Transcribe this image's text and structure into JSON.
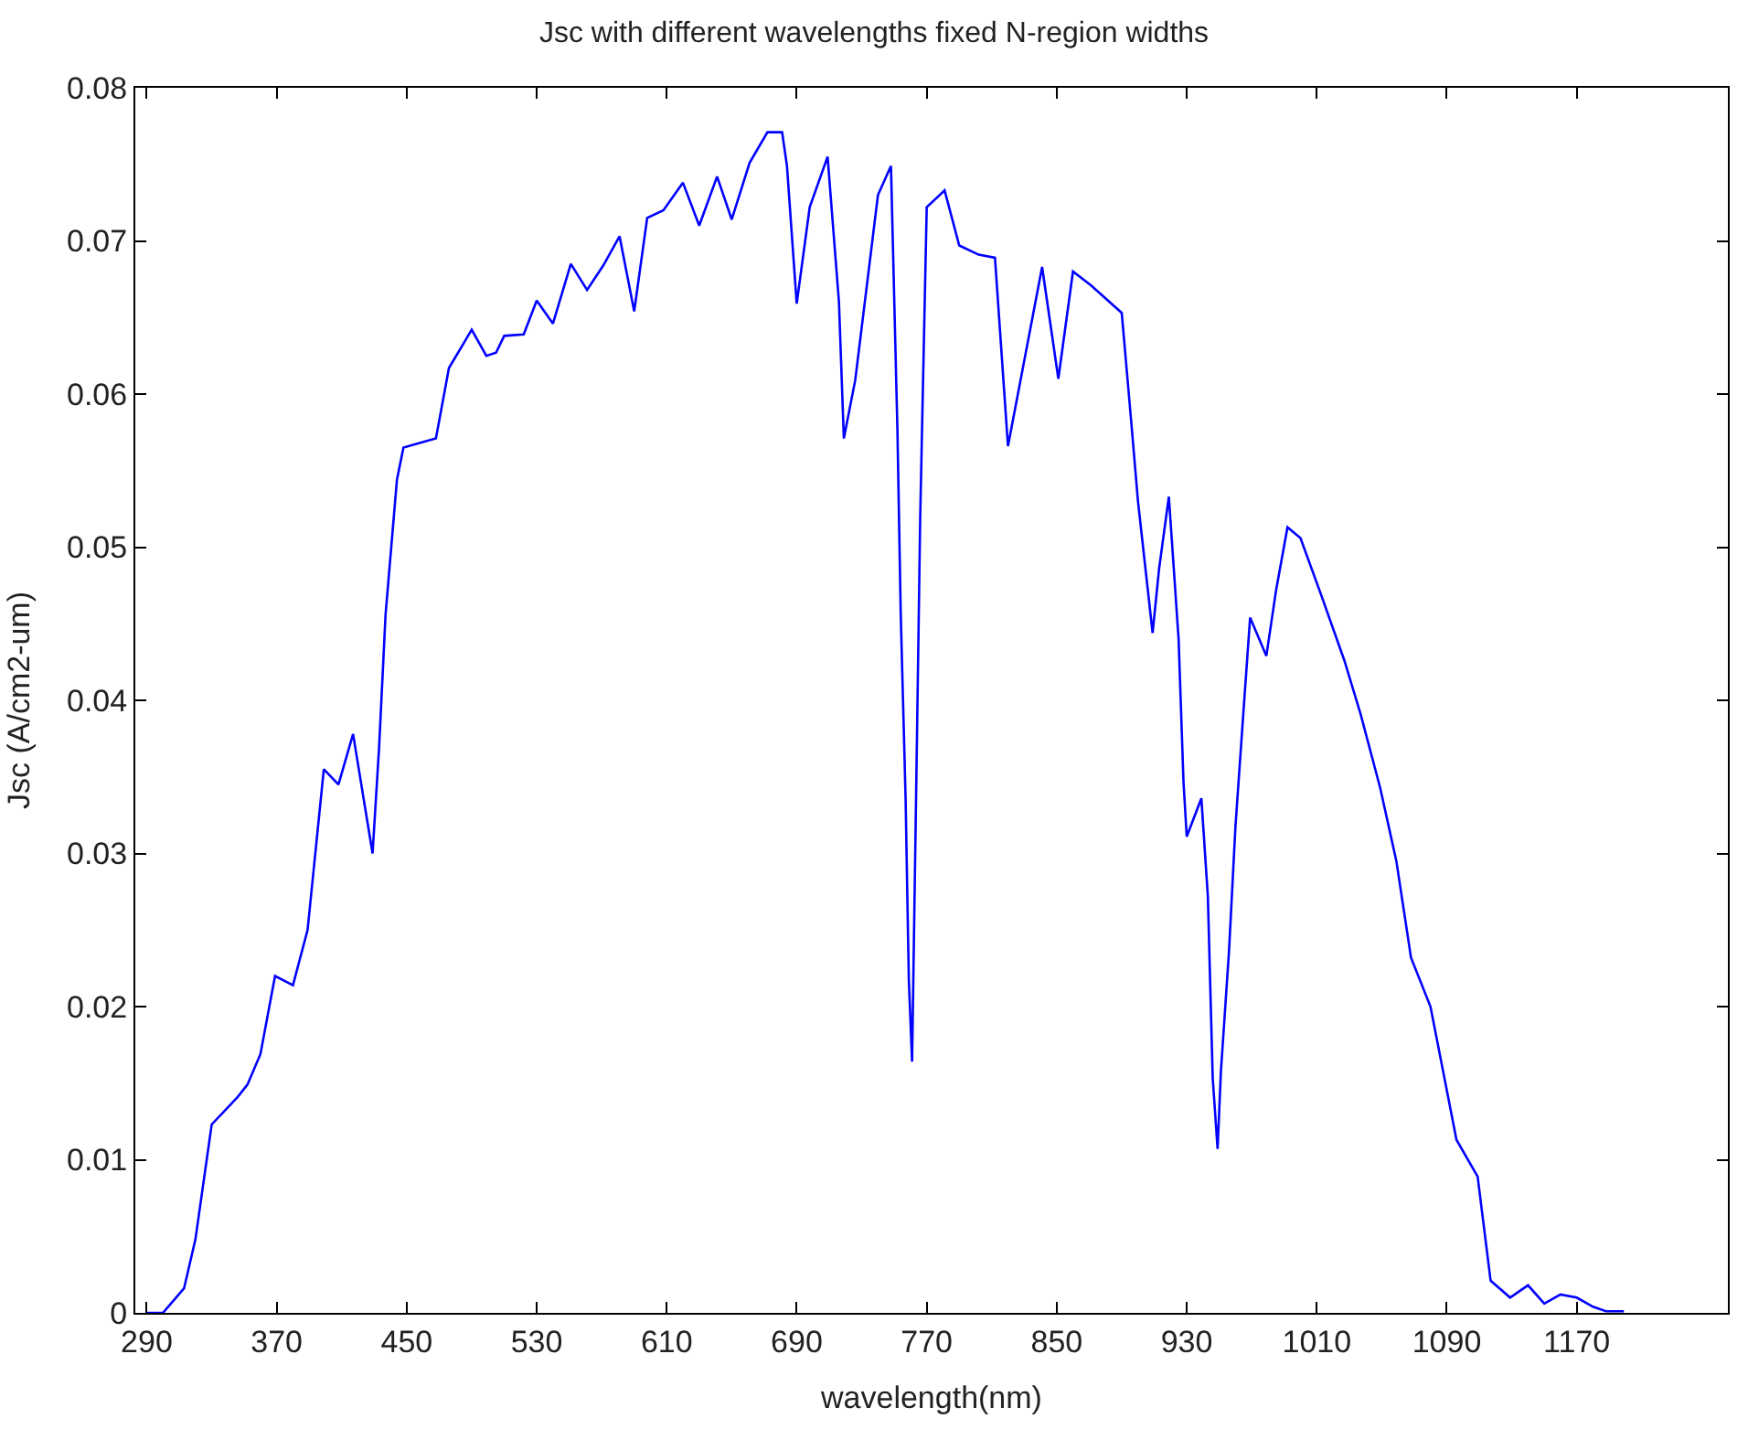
{
  "chart_data": {
    "type": "line",
    "title": "Jsc with different wavelengths fixed N-region widths",
    "xlabel": "wavelength(nm)",
    "ylabel": "Jsc (A/cm2-um)",
    "x": [
      290,
      300,
      313,
      320,
      330,
      346,
      352,
      360,
      369,
      380,
      389,
      399,
      408,
      417,
      429,
      433,
      437,
      444,
      448,
      468,
      476,
      490,
      499,
      505,
      510,
      522,
      530,
      540,
      551,
      561,
      571,
      581,
      590,
      598,
      608,
      620,
      630,
      641,
      650,
      661,
      672,
      681,
      684,
      690,
      698,
      709,
      716,
      719,
      726,
      740,
      748,
      752,
      754,
      757,
      759,
      761,
      764,
      766,
      770,
      781,
      790,
      802,
      812,
      820,
      841,
      851,
      860,
      871,
      890,
      896,
      900,
      909,
      913,
      919,
      925,
      928,
      930,
      939,
      943,
      946,
      949,
      951,
      956,
      960,
      965,
      969,
      979,
      985,
      992,
      1000,
      1013,
      1027,
      1037,
      1049,
      1059,
      1068,
      1080,
      1096,
      1109,
      1117,
      1129,
      1140,
      1150,
      1160,
      1170,
      1180,
      1188,
      1199
    ],
    "series": [
      {
        "color": "#0000ff",
        "values": [
          0,
          0,
          0.0016,
          0.0048,
          0.0123,
          0.0141,
          0.0149,
          0.0169,
          0.022,
          0.0214,
          0.025,
          0.0355,
          0.0345,
          0.0378,
          0.03,
          0.0369,
          0.0456,
          0.0544,
          0.0565,
          0.0571,
          0.0617,
          0.0642,
          0.0625,
          0.0627,
          0.0638,
          0.0639,
          0.0661,
          0.0646,
          0.0685,
          0.0668,
          0.0684,
          0.0703,
          0.0654,
          0.0715,
          0.072,
          0.0738,
          0.071,
          0.0742,
          0.0714,
          0.0751,
          0.0771,
          0.0771,
          0.0749,
          0.0659,
          0.0722,
          0.0755,
          0.066,
          0.0571,
          0.0609,
          0.073,
          0.0749,
          0.0575,
          0.0457,
          0.0336,
          0.0217,
          0.0164,
          0.0376,
          0.052,
          0.0722,
          0.0733,
          0.0697,
          0.0691,
          0.0689,
          0.0566,
          0.0683,
          0.061,
          0.068,
          0.0671,
          0.0653,
          0.058,
          0.053,
          0.0444,
          0.0486,
          0.0533,
          0.044,
          0.0347,
          0.0311,
          0.0336,
          0.0272,
          0.0153,
          0.0107,
          0.0157,
          0.0236,
          0.0318,
          0.0394,
          0.0454,
          0.0429,
          0.0472,
          0.0513,
          0.0506,
          0.0468,
          0.0426,
          0.0391,
          0.0343,
          0.0295,
          0.0232,
          0.02,
          0.0113,
          0.0089,
          0.0021,
          0.001,
          0.0018,
          0.0006,
          0.0012,
          0.001,
          0.0004,
          0.0001,
          0.0001
        ]
      }
    ],
    "xlim": [
      283,
      1263
    ],
    "xticks": [
      290,
      370,
      450,
      530,
      610,
      690,
      770,
      850,
      930,
      1010,
      1090,
      1170
    ],
    "ylim": [
      0,
      0.08
    ],
    "yticks": [
      0,
      0.01,
      0.02,
      0.03,
      0.04,
      0.05,
      0.06,
      0.07,
      0.08
    ],
    "grid": false,
    "marker": "none",
    "line_style": "solid"
  }
}
